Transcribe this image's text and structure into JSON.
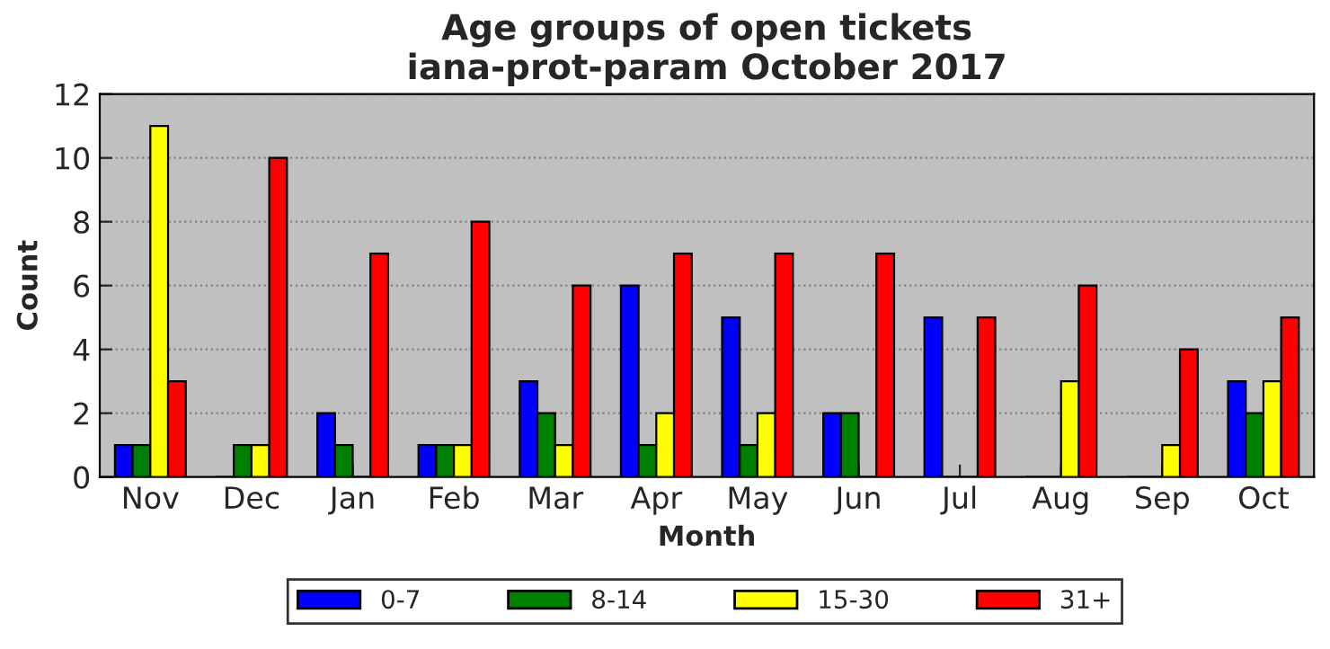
{
  "chart_data": {
    "type": "bar",
    "title": "Age groups of open tickets\niana-prot-param October 2017",
    "xlabel": "Month",
    "ylabel": "Count",
    "categories": [
      "Nov",
      "Dec",
      "Jan",
      "Feb",
      "Mar",
      "Apr",
      "May",
      "Jun",
      "Jul",
      "Aug",
      "Sep",
      "Oct"
    ],
    "series": [
      {
        "name": "0-7",
        "color": "#0000ff",
        "values": [
          1,
          0,
          2,
          1,
          3,
          6,
          5,
          2,
          5,
          0,
          0,
          3
        ]
      },
      {
        "name": "8-14",
        "color": "#008000",
        "values": [
          1,
          1,
          1,
          1,
          2,
          1,
          1,
          2,
          0,
          0,
          0,
          2
        ]
      },
      {
        "name": "15-30",
        "color": "#ffff00",
        "values": [
          11,
          1,
          0,
          1,
          1,
          2,
          2,
          0,
          0,
          3,
          1,
          3
        ]
      },
      {
        "name": "31+",
        "color": "#ff0000",
        "values": [
          3,
          10,
          7,
          8,
          6,
          7,
          7,
          7,
          5,
          6,
          4,
          5
        ]
      }
    ],
    "ylim": [
      0,
      12
    ],
    "yticks": [
      0,
      2,
      4,
      6,
      8,
      10,
      12
    ],
    "grid": "y",
    "legend": "bottom"
  }
}
